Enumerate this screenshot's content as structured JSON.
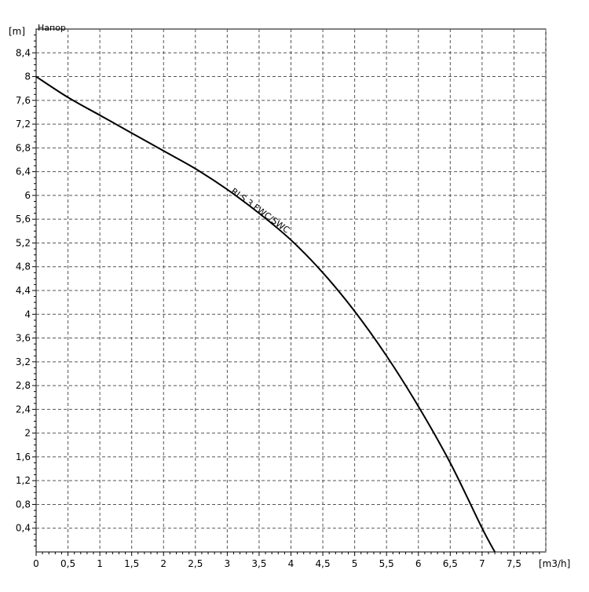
{
  "chart_data": {
    "type": "line",
    "title": "",
    "y_name": "Напор",
    "y_unit": "[m]",
    "x_unit": "[m3/h]",
    "xlim": [
      0,
      8
    ],
    "ylim": [
      0,
      8.8
    ],
    "x_ticks": [
      "0",
      "0,5",
      "1",
      "1,5",
      "2",
      "2,5",
      "3",
      "3,5",
      "4",
      "4,5",
      "5",
      "5,5",
      "6",
      "6,5",
      "7",
      "7,5"
    ],
    "x_tick_values": [
      0,
      0.5,
      1,
      1.5,
      2,
      2.5,
      3,
      3.5,
      4,
      4.5,
      5,
      5.5,
      6,
      6.5,
      7,
      7.5
    ],
    "y_ticks": [
      "0,4",
      "0,8",
      "1,2",
      "1,6",
      "2",
      "2,4",
      "2,8",
      "3,2",
      "3,6",
      "4",
      "4,4",
      "4,8",
      "5,2",
      "5,6",
      "6",
      "6,4",
      "6,8",
      "7,2",
      "7,6",
      "8",
      "8,4"
    ],
    "y_tick_values": [
      0.4,
      0.8,
      1.2,
      1.6,
      2,
      2.4,
      2.8,
      3.2,
      3.6,
      4,
      4.4,
      4.8,
      5.2,
      5.6,
      6,
      6.4,
      6.8,
      7.2,
      7.6,
      8,
      8.4
    ],
    "grid": true,
    "series": [
      {
        "name": "RLS 3 FWC/SWC",
        "x": [
          0,
          0.5,
          1,
          1.5,
          2,
          2.5,
          3,
          3.5,
          4,
          4.5,
          5,
          5.5,
          6,
          6.5,
          7,
          7.2
        ],
        "y": [
          8.0,
          7.65,
          7.35,
          7.05,
          6.75,
          6.45,
          6.1,
          5.7,
          5.25,
          4.7,
          4.05,
          3.3,
          2.45,
          1.5,
          0.4,
          0.0
        ]
      }
    ]
  }
}
